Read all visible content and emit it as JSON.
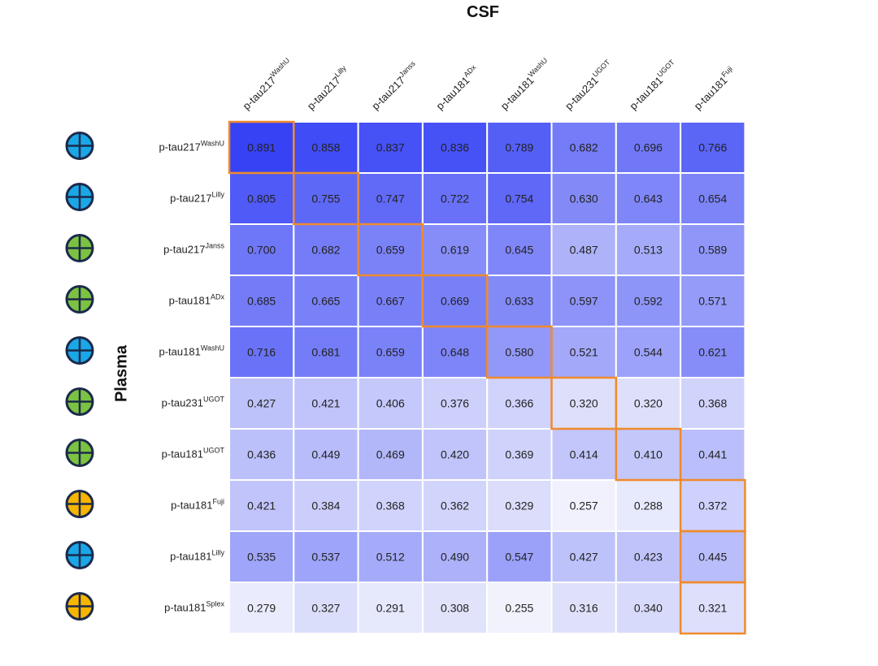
{
  "chart_data": {
    "type": "heatmap",
    "title": "CSF",
    "xlabel": "CSF",
    "ylabel": "Plasma",
    "columns": [
      {
        "base": "p-tau217",
        "sup": "WashU"
      },
      {
        "base": "p-tau217",
        "sup": "Lilly"
      },
      {
        "base": "p-tau217",
        "sup": "Janss"
      },
      {
        "base": "p-tau181",
        "sup": "ADx"
      },
      {
        "base": "p-tau181",
        "sup": "WashU"
      },
      {
        "base": "p-tau231",
        "sup": "UGOT"
      },
      {
        "base": "p-tau181",
        "sup": "UGOT"
      },
      {
        "base": "p-tau181",
        "sup": "Fuji"
      }
    ],
    "rows": [
      {
        "base": "p-tau217",
        "sup": "WashU",
        "marker_color": "#1aa7e8"
      },
      {
        "base": "p-tau217",
        "sup": "Lilly",
        "marker_color": "#1aa7e8"
      },
      {
        "base": "p-tau217",
        "sup": "Janss",
        "marker_color": "#7cc242"
      },
      {
        "base": "p-tau181",
        "sup": "ADx",
        "marker_color": "#7cc242"
      },
      {
        "base": "p-tau181",
        "sup": "WashU",
        "marker_color": "#1aa7e8"
      },
      {
        "base": "p-tau231",
        "sup": "UGOT",
        "marker_color": "#7cc242"
      },
      {
        "base": "p-tau181",
        "sup": "UGOT",
        "marker_color": "#7cc242"
      },
      {
        "base": "p-tau181",
        "sup": "Fuji",
        "marker_color": "#f7b500"
      },
      {
        "base": "p-tau181",
        "sup": "Lilly",
        "marker_color": "#1aa7e8"
      },
      {
        "base": "p-tau181",
        "sup": "Splex",
        "marker_color": "#f7b500"
      }
    ],
    "values": [
      [
        0.891,
        0.858,
        0.837,
        0.836,
        0.789,
        0.682,
        0.696,
        0.766
      ],
      [
        0.805,
        0.755,
        0.747,
        0.722,
        0.754,
        0.63,
        0.643,
        0.654
      ],
      [
        0.7,
        0.682,
        0.659,
        0.619,
        0.645,
        0.487,
        0.513,
        0.589
      ],
      [
        0.685,
        0.665,
        0.667,
        0.669,
        0.633,
        0.597,
        0.592,
        0.571
      ],
      [
        0.716,
        0.681,
        0.659,
        0.648,
        0.58,
        0.521,
        0.544,
        0.621
      ],
      [
        0.427,
        0.421,
        0.406,
        0.376,
        0.366,
        0.32,
        0.32,
        0.368
      ],
      [
        0.436,
        0.449,
        0.469,
        0.42,
        0.369,
        0.414,
        0.41,
        0.441
      ],
      [
        0.421,
        0.384,
        0.368,
        0.362,
        0.329,
        0.257,
        0.288,
        0.372
      ],
      [
        0.535,
        0.537,
        0.512,
        0.49,
        0.547,
        0.427,
        0.423,
        0.445
      ],
      [
        0.279,
        0.327,
        0.291,
        0.308,
        0.255,
        0.316,
        0.34,
        0.321
      ]
    ],
    "highlighted_cells": [
      [
        0,
        0
      ],
      [
        1,
        1
      ],
      [
        2,
        2
      ],
      [
        3,
        3
      ],
      [
        4,
        4
      ],
      [
        5,
        5
      ],
      [
        6,
        6
      ],
      [
        7,
        7
      ],
      [
        8,
        7
      ],
      [
        9,
        7
      ]
    ],
    "color_scale": {
      "low_value": 0.25,
      "high_value": 0.9,
      "low_color": "#f2f3fc",
      "high_color": "#3440f5"
    },
    "highlight_color": "#f08a2c",
    "marker_outline_color": "#1b2a4a",
    "legend": "none",
    "grid": true
  }
}
